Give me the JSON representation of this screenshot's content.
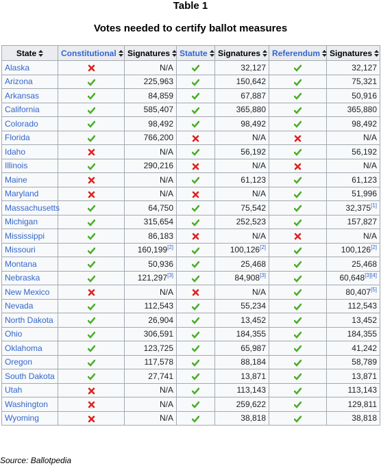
{
  "header": {
    "title": "Table 1",
    "subtitle": "Votes needed to certify ballot measures"
  },
  "table": {
    "columns": [
      "State",
      "Constitutional",
      "Signatures",
      "Statute",
      "Signatures",
      "Referendum",
      "Signatures"
    ],
    "rows": [
      [
        "Alaska",
        false,
        "N/A",
        true,
        "32,127",
        true,
        "32,127"
      ],
      [
        "Arizona",
        true,
        "225,963",
        true,
        "150,642",
        true,
        "75,321"
      ],
      [
        "Arkansas",
        true,
        "84,859",
        true,
        "67,887",
        true,
        "50,916"
      ],
      [
        "California",
        true,
        "585,407",
        true,
        "365,880",
        true,
        "365,880"
      ],
      [
        "Colorado",
        true,
        "98,492",
        true,
        "98,492",
        true,
        "98,492"
      ],
      [
        "Florida",
        true,
        "766,200",
        false,
        "N/A",
        false,
        "N/A"
      ],
      [
        "Idaho",
        false,
        "N/A",
        true,
        "56,192",
        true,
        "56,192"
      ],
      [
        "Illinois",
        true,
        "290,216",
        false,
        "N/A",
        false,
        "N/A"
      ],
      [
        "Maine",
        false,
        "N/A",
        true,
        "61,123",
        true,
        "61,123"
      ],
      [
        "Maryland",
        false,
        "N/A",
        false,
        "N/A",
        true,
        "51,996"
      ],
      [
        "Massachusetts",
        true,
        "64,750",
        true,
        "75,542",
        true,
        {
          "text": "32,375",
          "note": "[1]"
        }
      ],
      [
        "Michigan",
        true,
        "315,654",
        true,
        "252,523",
        true,
        "157,827"
      ],
      [
        "Mississippi",
        true,
        "86,183",
        false,
        "N/A",
        false,
        "N/A"
      ],
      [
        "Missouri",
        true,
        {
          "text": "160,199",
          "note": "[2]"
        },
        true,
        {
          "text": "100,126",
          "note": "[2]"
        },
        true,
        {
          "text": "100,126",
          "note": "[2]"
        }
      ],
      [
        "Montana",
        true,
        "50,936",
        true,
        "25,468",
        true,
        "25,468"
      ],
      [
        "Nebraska",
        true,
        {
          "text": "121,297",
          "note": "[3]"
        },
        true,
        {
          "text": "84,908",
          "note": "[3]"
        },
        true,
        {
          "text": "60,648",
          "note": "[3][4]"
        }
      ],
      [
        "New Mexico",
        false,
        "N/A",
        false,
        "N/A",
        true,
        {
          "text": "80,407",
          "note": "[5]"
        }
      ],
      [
        "Nevada",
        true,
        "112,543",
        true,
        "55,234",
        true,
        "112,543"
      ],
      [
        "North Dakota",
        true,
        "26,904",
        true,
        "13,452",
        true,
        "13,452"
      ],
      [
        "Ohio",
        true,
        "306,591",
        true,
        "184,355",
        true,
        "184,355"
      ],
      [
        "Oklahoma",
        true,
        "123,725",
        true,
        "65,987",
        true,
        "41,242"
      ],
      [
        "Oregon",
        true,
        "117,578",
        true,
        "88,184",
        true,
        "58,789"
      ],
      [
        "South Dakota",
        true,
        "27,741",
        true,
        "13,871",
        true,
        "13,871"
      ],
      [
        "Utah",
        false,
        "N/A",
        true,
        "113,143",
        true,
        "113,143"
      ],
      [
        "Washington",
        false,
        "N/A",
        true,
        "259,622",
        true,
        "129,811"
      ],
      [
        "Wyoming",
        false,
        "N/A",
        true,
        "38,818",
        true,
        "38,818"
      ]
    ]
  },
  "footer": {
    "source": "Source: Ballotpedia"
  }
}
